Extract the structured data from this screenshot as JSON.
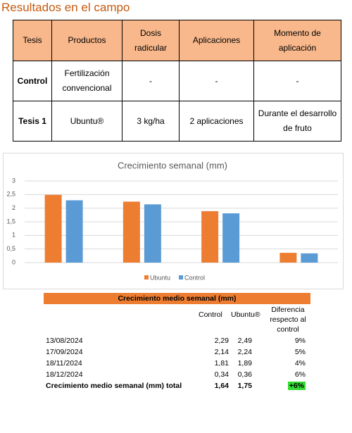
{
  "header": {
    "title": "Resultados en el campo"
  },
  "table": {
    "columns": [
      "Tesis",
      "Productos",
      "Dosis radicular",
      "Aplicaciones",
      "Momento de aplicación"
    ],
    "rows": [
      [
        "Control",
        "Fertilización convencional",
        "-",
        "-",
        "-"
      ],
      [
        "Tesis 1",
        "Ubuntu®",
        "3 kg/ha",
        "2 aplicaciones",
        "Durante el desarrollo de fruto"
      ]
    ]
  },
  "chart_data": {
    "type": "bar",
    "title": "Crecimiento semanal (mm)",
    "categories": [
      null,
      null,
      null,
      null
    ],
    "series": [
      {
        "name": "Ubuntu",
        "color": "#ed7d31",
        "values": [
          2.49,
          2.24,
          1.89,
          0.36
        ]
      },
      {
        "name": "Control",
        "color": "#5b9bd5",
        "values": [
          2.29,
          2.14,
          1.81,
          0.34
        ]
      }
    ],
    "ylim": [
      0,
      3
    ],
    "yticks": [
      0,
      {
        "value": 0.5,
        "label": "0,5"
      },
      1,
      {
        "value": 1.5,
        "label": "1,5"
      },
      2,
      {
        "value": 2.5,
        "label": "2,5"
      },
      3
    ],
    "grid": true,
    "legend": "bottom"
  },
  "summary": {
    "title": "Crecimiento medio semanal (mm)",
    "columns": [
      "Control",
      "Ubuntu®",
      "Diferencia respecto al control"
    ],
    "rows": [
      [
        "13/08/2024",
        "2,29",
        "2,49",
        "9%"
      ],
      [
        "17/09/2024",
        "2,14",
        "2,24",
        "5%"
      ],
      [
        "18/11/2024",
        "1,81",
        "1,89",
        "4%"
      ],
      [
        "18/12/2024",
        "0,34",
        "0,36",
        "6%"
      ]
    ],
    "total": [
      "Crecimiento medio semanal (mm) total",
      "1,64",
      "1,75",
      "+6%"
    ]
  }
}
